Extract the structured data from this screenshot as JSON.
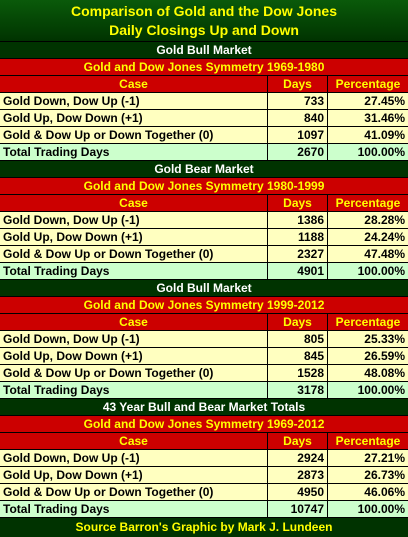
{
  "title": [
    "Comparison of Gold and the Dow Jones",
    "Daily Closings Up and Down"
  ],
  "columns": [
    "Case",
    "Days",
    "Percentage"
  ],
  "sections": [
    {
      "market": "Gold Bull Market",
      "subtitle": "Gold and Dow Jones Symmetry 1969-1980",
      "rows": [
        [
          "Gold Down, Dow Up  (-1)",
          "733",
          "27.45%"
        ],
        [
          "Gold Up, Dow Down  (+1)",
          "840",
          "31.46%"
        ],
        [
          "Gold & Dow Up or Down Together (0)",
          "1097",
          "41.09%"
        ]
      ],
      "total": [
        "Total Trading Days",
        "2670",
        "100.00%"
      ]
    },
    {
      "market": "Gold Bear Market",
      "subtitle": "Gold and Dow Jones Symmetry 1980-1999",
      "rows": [
        [
          "Gold Down, Dow Up  (-1)",
          "1386",
          "28.28%"
        ],
        [
          "Gold Up, Dow Down  (+1)",
          "1188",
          "24.24%"
        ],
        [
          "Gold & Dow Up or Down Together (0)",
          "2327",
          "47.48%"
        ]
      ],
      "total": [
        "Total Trading Days",
        "4901",
        "100.00%"
      ]
    },
    {
      "market": "Gold Bull Market",
      "subtitle": "Gold and Dow Jones Symmetry 1999-2012",
      "rows": [
        [
          "Gold Down, Dow Up  (-1)",
          "805",
          "25.33%"
        ],
        [
          "Gold Up, Dow Down  (+1)",
          "845",
          "26.59%"
        ],
        [
          "Gold & Dow Up or Down Together (0)",
          "1528",
          "48.08%"
        ]
      ],
      "total": [
        "Total Trading Days",
        "3178",
        "100.00%"
      ]
    },
    {
      "market": "43 Year Bull and Bear Market Totals",
      "subtitle": "Gold and Dow Jones Symmetry 1969-2012",
      "rows": [
        [
          "Gold Down, Dow Up  (-1)",
          "2924",
          "27.21%"
        ],
        [
          "Gold Up, Dow Down  (+1)",
          "2873",
          "26.73%"
        ],
        [
          "Gold & Dow Up or Down Together (0)",
          "4950",
          "46.06%"
        ]
      ],
      "total": [
        "Total Trading Days",
        "10747",
        "100.00%"
      ]
    }
  ],
  "footer": "Source Barron's  Graphic by Mark J. Lundeen"
}
